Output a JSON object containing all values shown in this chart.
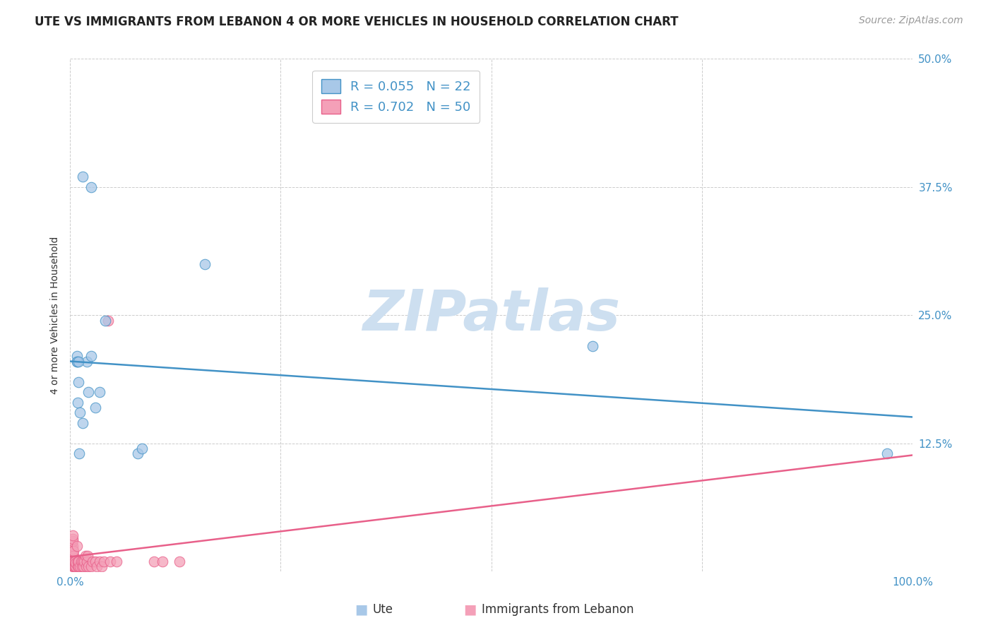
{
  "title": "UTE VS IMMIGRANTS FROM LEBANON 4 OR MORE VEHICLES IN HOUSEHOLD CORRELATION CHART",
  "source": "Source: ZipAtlas.com",
  "ylabel": "4 or more Vehicles in Household",
  "xlim": [
    0,
    1.0
  ],
  "ylim": [
    0,
    0.5
  ],
  "xticks": [
    0.0,
    0.25,
    0.5,
    0.75,
    1.0
  ],
  "xticklabels": [
    "0.0%",
    "",
    "",
    "",
    "100.0%"
  ],
  "yticks": [
    0.0,
    0.125,
    0.25,
    0.375,
    0.5
  ],
  "yticklabels": [
    "",
    "12.5%",
    "25.0%",
    "37.5%",
    "50.0%"
  ],
  "legend_label1": "R = 0.055   N = 22",
  "legend_label2": "R = 0.702   N = 50",
  "legend_color1": "#a8c8e8",
  "legend_color2": "#f4a0b8",
  "line_color1": "#4292c6",
  "line_color2": "#e8608a",
  "tick_color": "#4292c6",
  "watermark": "ZIPatlas",
  "watermark_color": "#cddff0",
  "background_color": "#ffffff",
  "grid_color": "#cccccc",
  "ute_scatter_x": [
    0.008,
    0.015,
    0.025,
    0.008,
    0.042,
    0.02,
    0.025,
    0.01,
    0.009,
    0.012,
    0.015,
    0.03,
    0.022,
    0.035,
    0.011,
    0.08,
    0.085,
    0.62,
    0.97,
    0.16,
    0.008,
    0.01
  ],
  "ute_scatter_y": [
    0.205,
    0.385,
    0.375,
    0.21,
    0.245,
    0.205,
    0.21,
    0.185,
    0.165,
    0.155,
    0.145,
    0.16,
    0.175,
    0.175,
    0.115,
    0.115,
    0.12,
    0.22,
    0.115,
    0.3,
    0.205,
    0.205
  ],
  "leb_scatter_x": [
    0.003,
    0.003,
    0.003,
    0.003,
    0.003,
    0.003,
    0.003,
    0.003,
    0.003,
    0.003,
    0.003,
    0.004,
    0.004,
    0.004,
    0.004,
    0.005,
    0.005,
    0.006,
    0.006,
    0.007,
    0.007,
    0.008,
    0.009,
    0.009,
    0.01,
    0.01,
    0.012,
    0.013,
    0.014,
    0.015,
    0.016,
    0.017,
    0.018,
    0.019,
    0.02,
    0.021,
    0.022,
    0.025,
    0.027,
    0.03,
    0.032,
    0.035,
    0.038,
    0.04,
    0.045,
    0.048,
    0.055,
    0.1,
    0.11,
    0.13
  ],
  "leb_scatter_y": [
    0.005,
    0.01,
    0.012,
    0.015,
    0.018,
    0.02,
    0.022,
    0.025,
    0.03,
    0.032,
    0.035,
    0.005,
    0.01,
    0.015,
    0.02,
    0.005,
    0.01,
    0.005,
    0.01,
    0.005,
    0.008,
    0.025,
    0.005,
    0.01,
    0.005,
    0.01,
    0.005,
    0.01,
    0.005,
    0.01,
    0.005,
    0.01,
    0.015,
    0.005,
    0.01,
    0.015,
    0.005,
    0.005,
    0.01,
    0.01,
    0.005,
    0.01,
    0.005,
    0.01,
    0.245,
    0.01,
    0.01,
    0.01,
    0.01,
    0.01
  ],
  "title_fontsize": 12,
  "axis_label_fontsize": 10,
  "tick_fontsize": 11,
  "source_fontsize": 10,
  "legend_fontsize": 13
}
